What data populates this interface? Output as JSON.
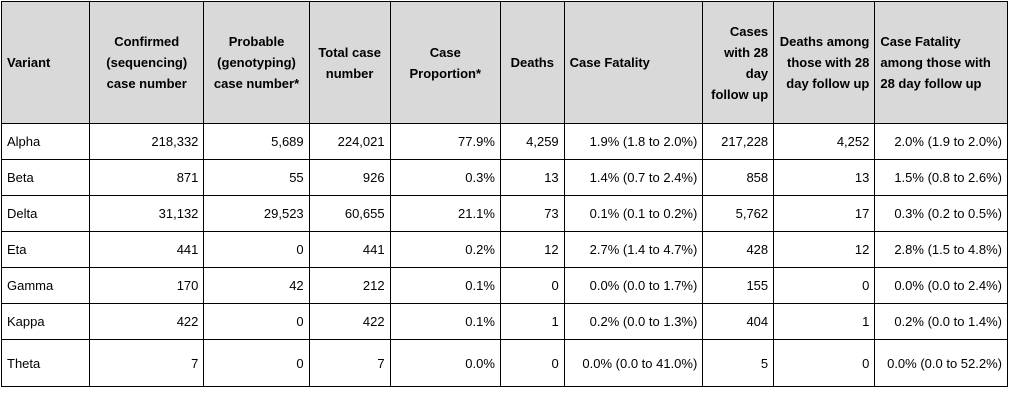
{
  "headers": [
    "Variant",
    "Confirmed (sequencing) case number",
    "Probable (genotyping) case number*",
    "Total case number",
    "Case Proportion*",
    "Deaths",
    "Case Fatality",
    "Cases with 28 day follow up",
    "Deaths among those with 28 day follow up",
    "Case Fatality among those with 28 day follow up"
  ],
  "rows": [
    [
      "Alpha",
      "218,332",
      "5,689",
      "224,021",
      "77.9%",
      "4,259",
      "1.9% (1.8 to 2.0%)",
      "217,228",
      "4,252",
      "2.0% (1.9 to 2.0%)"
    ],
    [
      "Beta",
      "871",
      "55",
      "926",
      "0.3%",
      "13",
      "1.4% (0.7 to 2.4%)",
      "858",
      "13",
      "1.5% (0.8 to 2.6%)"
    ],
    [
      "Delta",
      "31,132",
      "29,523",
      "60,655",
      "21.1%",
      "73",
      "0.1% (0.1 to 0.2%)",
      "5,762",
      "17",
      "0.3% (0.2 to 0.5%)"
    ],
    [
      "Eta",
      "441",
      "0",
      "441",
      "0.2%",
      "12",
      "2.7% (1.4 to 4.7%)",
      "428",
      "12",
      "2.8% (1.5 to 4.8%)"
    ],
    [
      "Gamma",
      "170",
      "42",
      "212",
      "0.1%",
      "0",
      "0.0% (0.0 to 1.7%)",
      "155",
      "0",
      "0.0% (0.0 to 2.4%)"
    ],
    [
      "Kappa",
      "422",
      "0",
      "422",
      "0.1%",
      "1",
      "0.2% (0.0 to 1.3%)",
      "404",
      "1",
      "0.2% (0.0 to 1.4%)"
    ],
    [
      "Theta",
      "7",
      "0",
      "7",
      "0.0%",
      "0",
      "0.0% (0.0 to 41.0%)",
      "5",
      "0",
      "0.0% (0.0 to 52.2%)"
    ]
  ],
  "colors": {
    "header_background": "#d9d9d9",
    "border": "#000000"
  }
}
